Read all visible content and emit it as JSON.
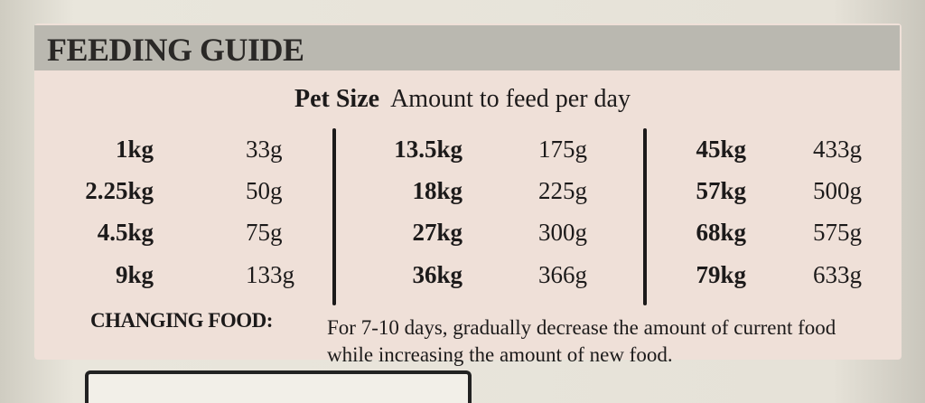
{
  "header": {
    "title": "FEEDING GUIDE"
  },
  "table": {
    "pet_size_label": "Pet Size",
    "amount_label": "Amount to feed per day",
    "groups": [
      [
        [
          "1kg",
          "33g"
        ],
        [
          "2.25kg",
          "50g"
        ],
        [
          "4.5kg",
          "75g"
        ],
        [
          "9kg",
          "133g"
        ]
      ],
      [
        [
          "13.5kg",
          "175g"
        ],
        [
          "18kg",
          "225g"
        ],
        [
          "27kg",
          "300g"
        ],
        [
          "36kg",
          "366g"
        ]
      ],
      [
        [
          "45kg",
          "433g"
        ],
        [
          "57kg",
          "500g"
        ],
        [
          "68kg",
          "575g"
        ],
        [
          "79kg",
          "633g"
        ]
      ]
    ]
  },
  "note": {
    "label": "CHANGING FOOD:",
    "text": "For 7-10 days, gradually decrease the amount of current food while increasing the amount of new food."
  }
}
